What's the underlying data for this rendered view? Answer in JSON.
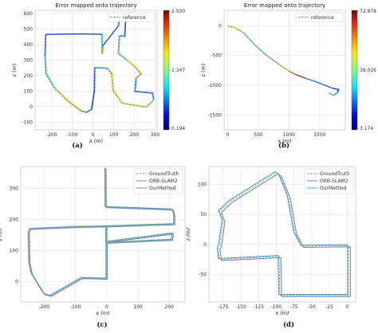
{
  "chart_data": [
    {
      "panel": "a",
      "type": "line",
      "caption": "(a)",
      "title": "Error mapped onto trajectory",
      "xlabel": "x (m)",
      "ylabel": "z (m)",
      "xlim": [
        -280,
        310
      ],
      "ylim": [
        -150,
        620
      ],
      "xticks": [
        -200,
        -100,
        0,
        100,
        200,
        300
      ],
      "yticks": [
        -100,
        0,
        100,
        200,
        300,
        400,
        500,
        600
      ],
      "grid": true,
      "legend": {
        "placement": "top-right",
        "entries": [
          {
            "label": "reference",
            "style": "dashed"
          }
        ]
      },
      "colorbar": {
        "max": "2.500",
        "mid": "1.347",
        "min": "0.194",
        "colormap": "jet"
      },
      "series": [
        {
          "role": "reference",
          "points": [
            [
              -60,
              -30
            ],
            [
              -120,
              30
            ],
            [
              -190,
              120
            ],
            [
              -230,
              210
            ],
            [
              -235,
              330
            ],
            [
              -232,
              460
            ],
            [
              -228,
              462
            ],
            [
              -50,
              465
            ],
            [
              40,
              463
            ],
            [
              42,
              340
            ],
            [
              45,
              390
            ],
            [
              120,
              520
            ],
            [
              125,
              560
            ],
            [
              150,
              572
            ],
            [
              155,
              568
            ],
            [
              150,
              450
            ],
            [
              125,
              455
            ],
            [
              120,
              340
            ],
            [
              160,
              300
            ],
            [
              200,
              255
            ],
            [
              230,
              210
            ],
            [
              205,
              180
            ],
            [
              200,
              95
            ],
            [
              240,
              90
            ],
            [
              285,
              85
            ],
            [
              290,
              40
            ],
            [
              255,
              -5
            ],
            [
              140,
              20
            ],
            [
              95,
              100
            ],
            [
              88,
              210
            ],
            [
              65,
              245
            ],
            [
              5,
              248
            ],
            [
              3,
              100
            ],
            [
              -10,
              -20
            ],
            [
              -35,
              -40
            ],
            [
              -60,
              -30
            ]
          ]
        },
        {
          "role": "estimate",
          "colors": [
            "#e0b400",
            "#9be01a",
            "#2dd69a",
            "#1fb5ef",
            "#1b6fe6",
            "#1a40d0",
            "#1a3fd4",
            "#1e58e8",
            "#19c9d2",
            "#f0a000",
            "#1a46d8",
            "#1e7ae8",
            "#33d3b0",
            "#7ede50",
            "#1b4fde",
            "#1c6ee8",
            "#2ac4e0",
            "#5ad97a",
            "#c5e020",
            "#f0c400",
            "#e08a00",
            "#1f8de8",
            "#1f5de8",
            "#1c4fe0",
            "#2a8ff0",
            "#5cd48a",
            "#b0e02a",
            "#d8d018",
            "#f0c400",
            "#e59a00",
            "#2f9ff0",
            "#1f5ee8",
            "#1a3ad0",
            "#1a4fe0",
            "#22b5e8"
          ]
        }
      ]
    },
    {
      "panel": "b",
      "type": "line",
      "caption": "(b)",
      "title": "Error mapped onto trajectory",
      "xlabel": "x (m)",
      "ylabel": "z (m)",
      "xlim": [
        -60,
        1920
      ],
      "ylim": [
        -1750,
        260
      ],
      "xticks": [
        0,
        500,
        1000,
        1500
      ],
      "yticks": [
        -1500,
        -1000,
        -500,
        0
      ],
      "grid": true,
      "legend": {
        "placement": "top-right",
        "entries": [
          {
            "label": "reference",
            "style": "dashed"
          }
        ]
      },
      "colorbar": {
        "max": "72.878",
        "mid": "38.026",
        "min": "3.174",
        "colormap": "jet"
      },
      "series": [
        {
          "role": "reference",
          "points": [
            [
              0,
              0
            ],
            [
              100,
              -20
            ],
            [
              250,
              -110
            ],
            [
              420,
              -300
            ],
            [
              600,
              -470
            ],
            [
              800,
              -620
            ],
            [
              1000,
              -760
            ],
            [
              1100,
              -810
            ],
            [
              1250,
              -870
            ],
            [
              1400,
              -920
            ],
            [
              1550,
              -980
            ],
            [
              1700,
              -1040
            ],
            [
              1800,
              -1060
            ],
            [
              1780,
              -1120
            ],
            [
              1720,
              -1160
            ],
            [
              1650,
              -1130
            ]
          ]
        },
        {
          "role": "estimate",
          "colors": [
            "#d8cd1a",
            "#9be01a",
            "#37d6a8",
            "#2acbd8",
            "#5ad97a",
            "#9be01a",
            "#e55a00",
            "#c01010",
            "#1f8de8",
            "#1e5ee8",
            "#1b44d8",
            "#1a3ad0",
            "#1a3fd4",
            "#33d3b0",
            "#23d4c0"
          ]
        }
      ]
    },
    {
      "panel": "c",
      "type": "line",
      "caption": "(c)",
      "xlabel": "x (m)",
      "ylabel": "z (m)",
      "xlim": [
        -275,
        250
      ],
      "ylim": [
        -65,
        370
      ],
      "xticks": [
        -200,
        -100,
        0,
        100,
        200
      ],
      "yticks": [
        0,
        100,
        200,
        300
      ],
      "grid": true,
      "legend": {
        "placement": "top-right",
        "entries": [
          {
            "label": "GroundTruth",
            "style": "dashed"
          },
          {
            "label": "ORB-SLAM2",
            "style": "solid"
          },
          {
            "label": "OurMethod",
            "style": "solid"
          }
        ]
      },
      "series": [
        {
          "name": "GroundTruth",
          "points": [
            [
              -5,
              365
            ],
            [
              -4,
              240
            ],
            [
              210,
              232
            ],
            [
              215,
              215
            ],
            [
              215,
              185
            ],
            [
              -2,
              178
            ],
            [
              -2,
              128
            ],
            [
              210,
              155
            ],
            [
              208,
              135
            ],
            [
              -1,
              125
            ],
            [
              -1,
              10
            ],
            [
              -80,
              12
            ],
            [
              -180,
              -45
            ],
            [
              -200,
              -40
            ],
            [
              -240,
              25
            ],
            [
              -248,
              60
            ],
            [
              -250,
              160
            ],
            [
              -245,
              170
            ],
            [
              -100,
              176
            ],
            [
              -1,
              178
            ]
          ]
        }
      ]
    },
    {
      "panel": "d",
      "type": "line",
      "caption": "(d)",
      "xlabel": "x (m)",
      "ylabel": "z (m)",
      "xlim": [
        -195,
        12
      ],
      "ylim": [
        -96,
        130
      ],
      "xticks": [
        -175,
        -150,
        -125,
        -100,
        -75,
        -50,
        -25,
        0
      ],
      "yticks": [
        -50,
        0,
        50,
        100
      ],
      "grid": true,
      "legend": {
        "placement": "top-right",
        "entries": [
          {
            "label": "GroundTruth",
            "style": "dashed"
          },
          {
            "label": "ORB-SLAM2",
            "style": "solid"
          },
          {
            "label": "OurMethod",
            "style": "solid"
          }
        ]
      },
      "series": [
        {
          "name": "GroundTruth",
          "points": [
            [
              -95,
              -85
            ],
            [
              -96,
              -20
            ],
            [
              -180,
              -25
            ],
            [
              -182,
              -8
            ],
            [
              -180,
              -2
            ],
            [
              -175,
              40
            ],
            [
              -180,
              55
            ],
            [
              -165,
              72
            ],
            [
              -100,
              120
            ],
            [
              -95,
              115
            ],
            [
              -83,
              80
            ],
            [
              -74,
              20
            ],
            [
              -64,
              -3
            ],
            [
              2,
              -2
            ],
            [
              2,
              -85
            ],
            [
              -95,
              -85
            ]
          ]
        }
      ]
    }
  ]
}
